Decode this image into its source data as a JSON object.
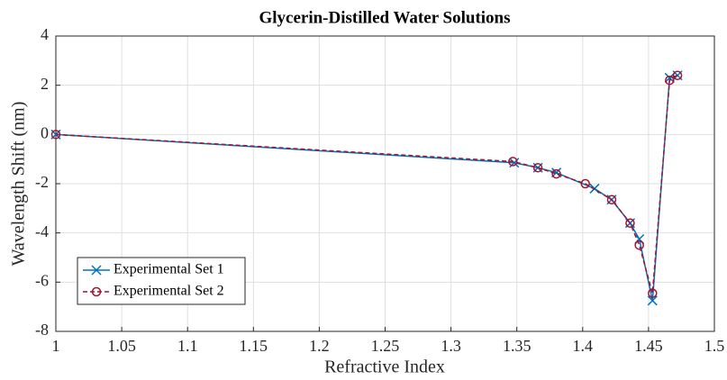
{
  "chart_data": {
    "type": "line",
    "title": "Glycerin-Distilled Water Solutions",
    "xlabel": "Refractive Index",
    "ylabel": "Wavelength Shift (nm)",
    "xlim": [
      1,
      1.5
    ],
    "xticks": [
      1,
      1.05,
      1.1,
      1.15,
      1.2,
      1.25,
      1.3,
      1.35,
      1.4,
      1.45,
      1.5
    ],
    "ylim": [
      -8,
      4
    ],
    "yticks": [
      -8,
      -6,
      -4,
      -2,
      0,
      2,
      4
    ],
    "grid": true,
    "legend": "southwest",
    "series": [
      {
        "name": "Experimental Set 1",
        "color": "#0072bd",
        "marker": "x",
        "linestyle": "solid",
        "x": [
          1,
          1.348,
          1.366,
          1.38,
          1.409,
          1.422,
          1.436,
          1.443,
          1.453,
          1.466,
          1.472
        ],
        "values": [
          0,
          -1.15,
          -1.35,
          -1.55,
          -2.2,
          -2.65,
          -3.6,
          -4.25,
          -6.75,
          2.3,
          2.4
        ]
      },
      {
        "name": "Experimental Set 2",
        "color": "#a2142f",
        "marker": "o",
        "linestyle": "dashed",
        "x": [
          1,
          1.347,
          1.366,
          1.38,
          1.402,
          1.422,
          1.436,
          1.443,
          1.453,
          1.466,
          1.472
        ],
        "values": [
          0,
          -1.1,
          -1.35,
          -1.6,
          -2.0,
          -2.65,
          -3.6,
          -4.5,
          -6.45,
          2.2,
          2.4
        ]
      }
    ]
  }
}
